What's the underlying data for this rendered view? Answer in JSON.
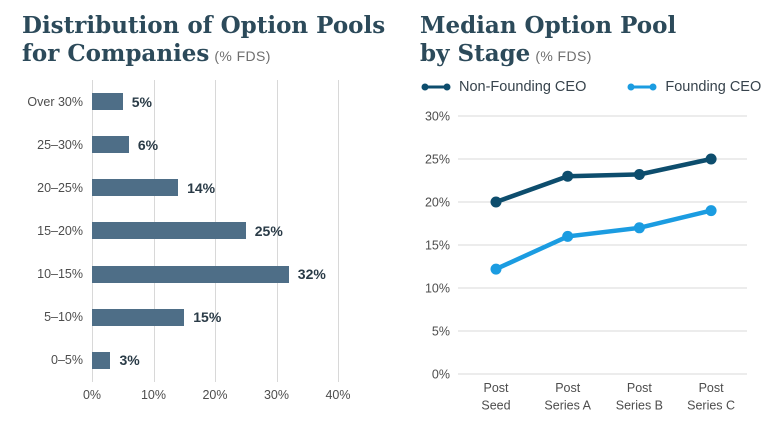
{
  "left_chart": {
    "title": "Distribution of Option Pools\nfor Companies",
    "unit": "(% FDS)"
  },
  "right_chart": {
    "title": "Median Option Pool\nby Stage",
    "unit": "(% FDS)",
    "legend": [
      {
        "label": "Non-Founding CEO",
        "color": "#0d4d6d"
      },
      {
        "label": "Founding CEO",
        "color": "#1b9ce1"
      }
    ]
  },
  "colors": {
    "title": "#2c4a5a",
    "bar": "#4e6e87",
    "gridline": "#d8d8d8",
    "axis_text": "#4d4d4d",
    "value_text": "#2a3b47",
    "dark_series": "#0d4d6d",
    "light_series": "#1b9ce1"
  },
  "chart_data": [
    {
      "type": "bar",
      "orientation": "horizontal",
      "title": "Distribution of Option Pools for Companies (% FDS)",
      "categories": [
        "Over 30%",
        "25–30%",
        "20–25%",
        "15–20%",
        "10–15%",
        "5–10%",
        "0–5%"
      ],
      "values": [
        5,
        6,
        14,
        25,
        32,
        15,
        3
      ],
      "value_labels": [
        "5%",
        "6%",
        "14%",
        "25%",
        "32%",
        "15%",
        "3%"
      ],
      "xlim": [
        0,
        40
      ],
      "x_ticks": [
        "0%",
        "10%",
        "20%",
        "30%",
        "40%"
      ],
      "bar_color": "#4e6e87",
      "grid": "vertical"
    },
    {
      "type": "line",
      "title": "Median Option Pool by Stage (% FDS)",
      "categories": [
        "Post Seed",
        "Post Series A",
        "Post Series B",
        "Post Series C"
      ],
      "series": [
        {
          "name": "Non-Founding CEO",
          "color": "#0d4d6d",
          "values": [
            20,
            23,
            23.2,
            25
          ]
        },
        {
          "name": "Founding CEO",
          "color": "#1b9ce1",
          "values": [
            12.2,
            16,
            17,
            19
          ]
        }
      ],
      "ylim": [
        0,
        30
      ],
      "y_ticks": [
        "0%",
        "5%",
        "10%",
        "15%",
        "20%",
        "25%",
        "30%"
      ],
      "grid": "horizontal",
      "legend_position": "top"
    }
  ]
}
